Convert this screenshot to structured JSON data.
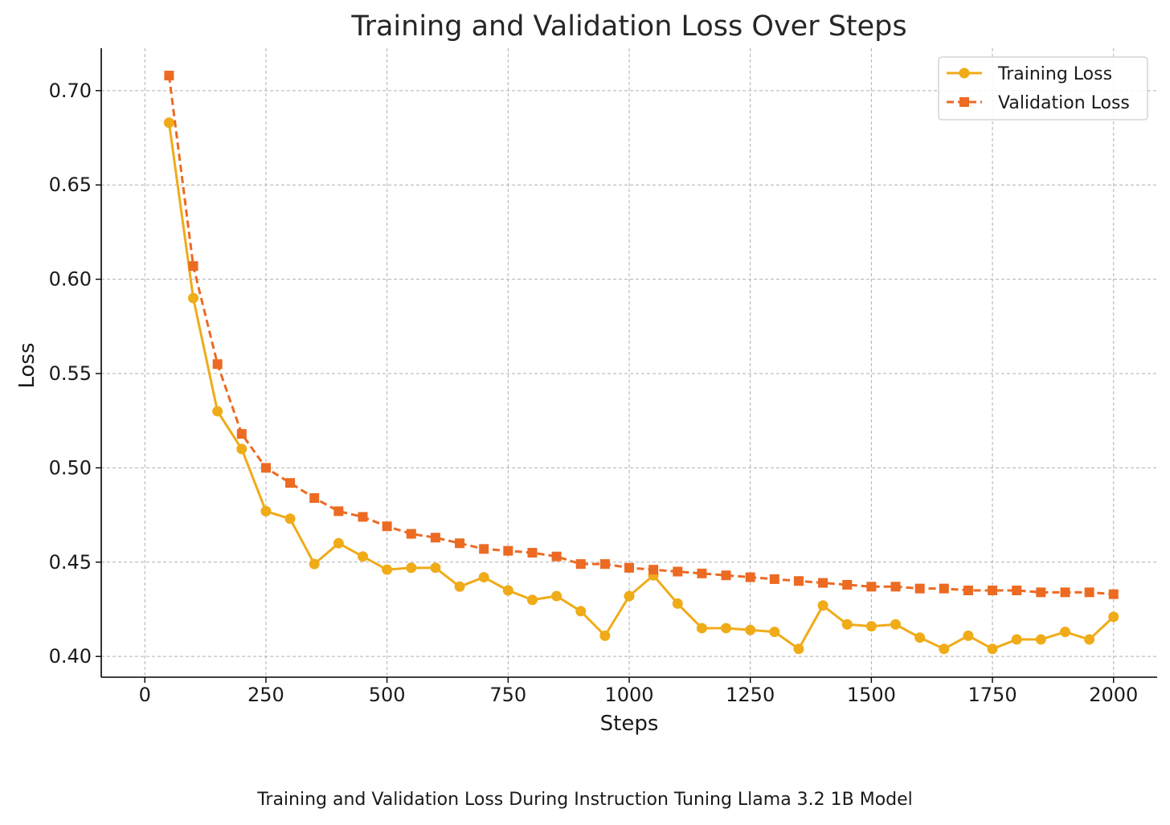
{
  "caption": "Training and Validation Loss During Instruction Tuning Llama 3.2 1B Model",
  "chart_data": {
    "type": "line",
    "title": "Training and Validation Loss Over Steps",
    "xlabel": "Steps",
    "ylabel": "Loss",
    "xlim": [
      -90,
      2090
    ],
    "ylim": [
      0.389,
      0.7225
    ],
    "xticks": [
      0,
      250,
      500,
      750,
      1000,
      1250,
      1500,
      1750,
      2000
    ],
    "yticks": [
      0.4,
      0.45,
      0.5,
      0.55,
      0.6,
      0.65,
      0.7
    ],
    "xtick_labels": [
      "0",
      "250",
      "500",
      "750",
      "1000",
      "1250",
      "1500",
      "1750",
      "2000"
    ],
    "ytick_labels": [
      "0.40",
      "0.45",
      "0.50",
      "0.55",
      "0.60",
      "0.65",
      "0.70"
    ],
    "grid": true,
    "legend_position": "top-right",
    "x": [
      50,
      100,
      150,
      200,
      250,
      300,
      350,
      400,
      450,
      500,
      550,
      600,
      650,
      700,
      750,
      800,
      850,
      900,
      950,
      1000,
      1050,
      1100,
      1150,
      1200,
      1250,
      1300,
      1350,
      1400,
      1450,
      1500,
      1550,
      1600,
      1650,
      1700,
      1750,
      1800,
      1850,
      1900,
      1950,
      2000
    ],
    "series": [
      {
        "name": "Training Loss",
        "color": "#f0ab18",
        "marker": "circle",
        "linestyle": "solid",
        "values": [
          0.683,
          0.59,
          0.53,
          0.51,
          0.477,
          0.473,
          0.449,
          0.46,
          0.453,
          0.446,
          0.447,
          0.447,
          0.437,
          0.442,
          0.435,
          0.43,
          0.432,
          0.424,
          0.411,
          0.432,
          0.443,
          0.428,
          0.415,
          0.415,
          0.414,
          0.413,
          0.404,
          0.427,
          0.417,
          0.416,
          0.417,
          0.41,
          0.404,
          0.411,
          0.404,
          0.409,
          0.409,
          0.413,
          0.409,
          0.421
        ]
      },
      {
        "name": "Validation Loss",
        "color": "#ec6a22",
        "marker": "square",
        "linestyle": "dashed",
        "values": [
          0.708,
          0.607,
          0.555,
          0.518,
          0.5,
          0.492,
          0.484,
          0.477,
          0.474,
          0.469,
          0.465,
          0.463,
          0.46,
          0.457,
          0.456,
          0.455,
          0.453,
          0.449,
          0.449,
          0.447,
          0.446,
          0.445,
          0.444,
          0.443,
          0.442,
          0.441,
          0.44,
          0.439,
          0.438,
          0.437,
          0.437,
          0.436,
          0.436,
          0.435,
          0.435,
          0.435,
          0.434,
          0.434,
          0.434,
          0.433
        ]
      }
    ]
  }
}
